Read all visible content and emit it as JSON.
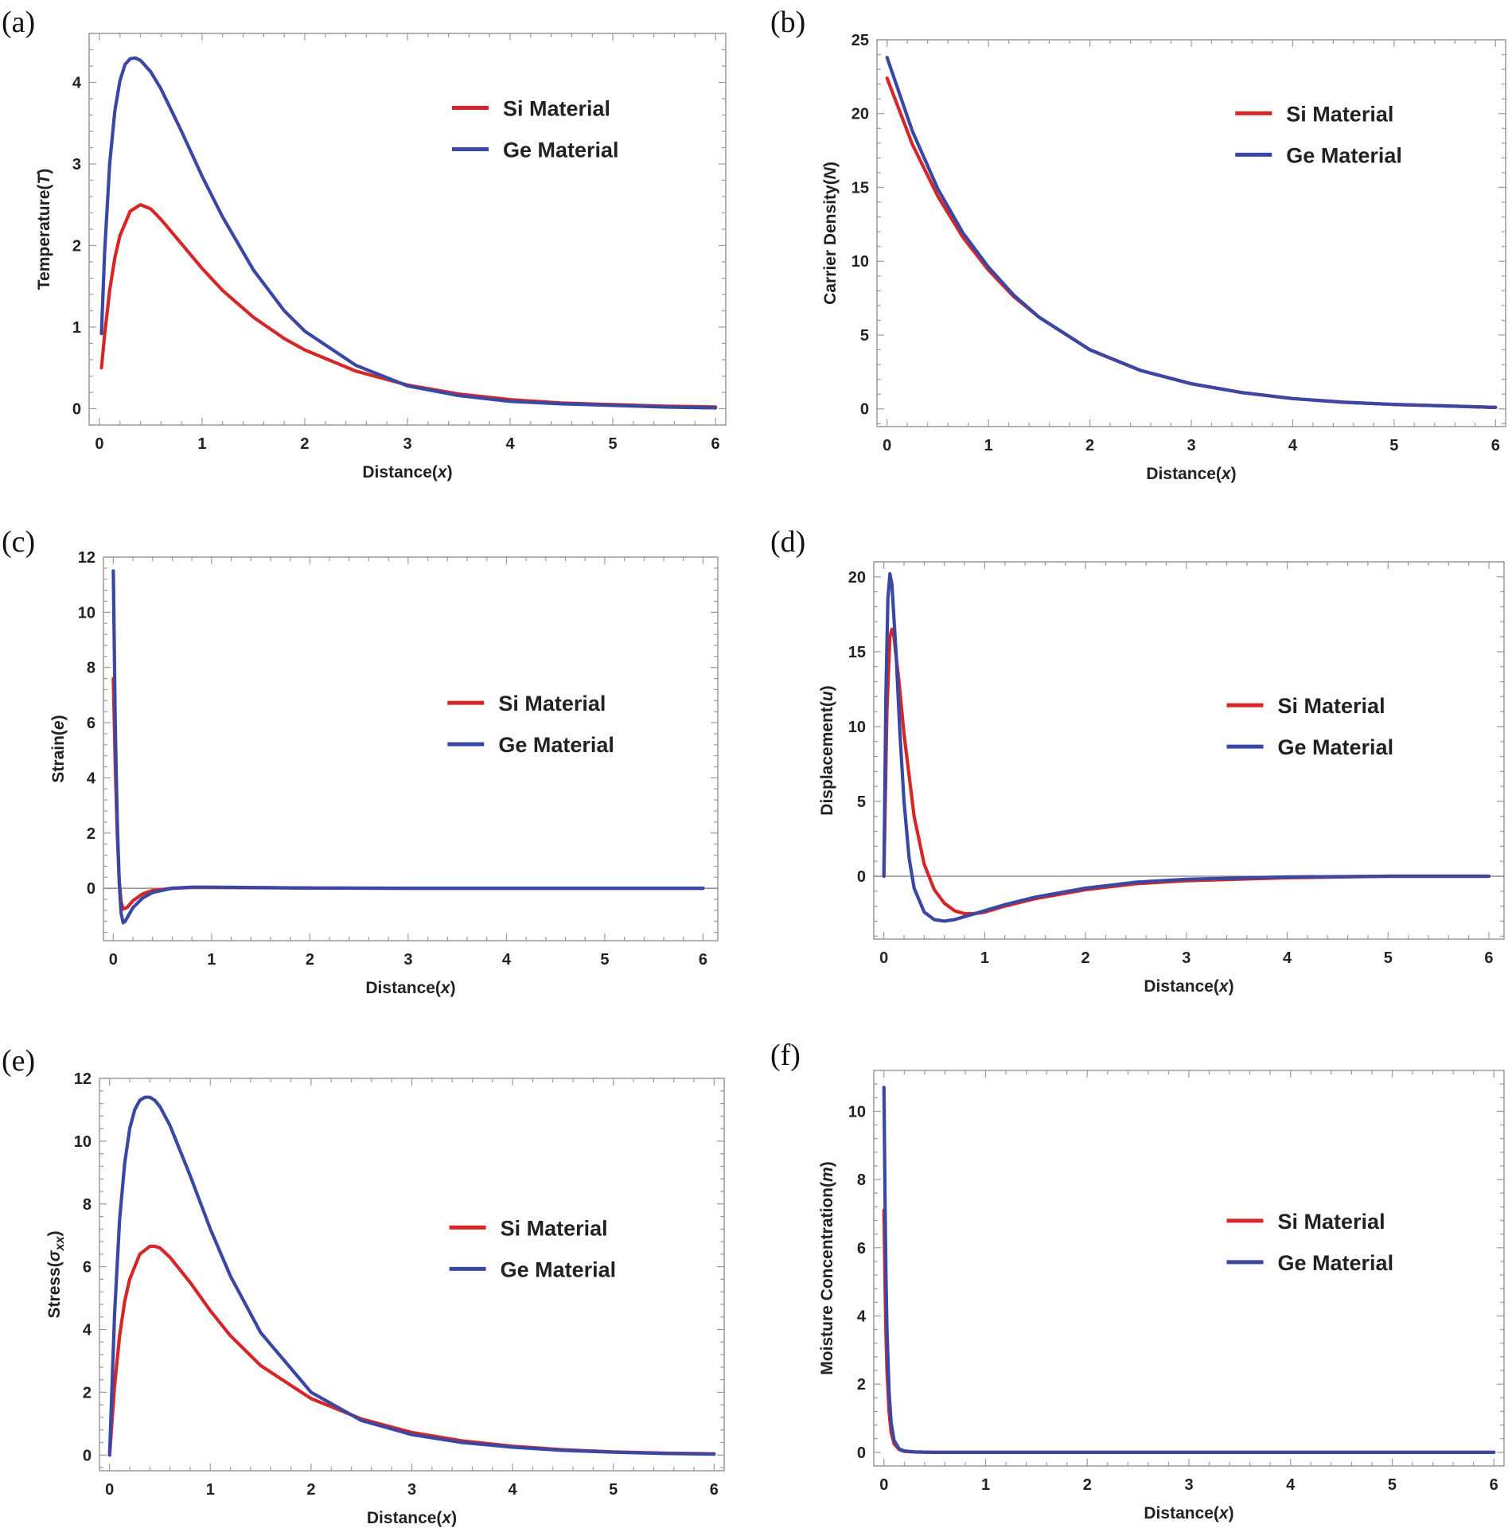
{
  "colors": {
    "si": "#d62728",
    "ge": "#3a48a3"
  },
  "chart_data": [
    {
      "type": "line",
      "panel_label": "(a)",
      "xlabel": "Distance(x)",
      "xlabel_main": "Distance(",
      "xlabel_var": "x",
      "xlabel_end": ")",
      "ylabel": "Temperature(T)",
      "ylabel_main": "Temperature(",
      "ylabel_var": "T",
      "ylabel_end": ")",
      "xlim": [
        -0.1,
        6.1
      ],
      "ylim": [
        -0.2,
        4.6
      ],
      "xticks": [
        0,
        1,
        2,
        3,
        4,
        5,
        6
      ],
      "yticks": [
        0,
        1,
        2,
        3,
        4
      ],
      "zero_line": false,
      "legend": [
        "Si Material",
        "Ge Material"
      ],
      "legend_position": "upper-right",
      "series": [
        {
          "name": "Si Material",
          "x": [
            0.02,
            0.05,
            0.1,
            0.15,
            0.2,
            0.3,
            0.4,
            0.5,
            0.6,
            0.8,
            1.0,
            1.2,
            1.5,
            1.8,
            2.0,
            2.5,
            3.0,
            3.5,
            4.0,
            4.5,
            5.0,
            5.5,
            6.0
          ],
          "y": [
            0.5,
            0.9,
            1.45,
            1.85,
            2.12,
            2.42,
            2.5,
            2.45,
            2.32,
            2.02,
            1.72,
            1.45,
            1.12,
            0.86,
            0.72,
            0.46,
            0.29,
            0.18,
            0.11,
            0.07,
            0.05,
            0.03,
            0.02
          ]
        },
        {
          "name": "Ge Material",
          "x": [
            0.02,
            0.05,
            0.1,
            0.15,
            0.2,
            0.25,
            0.3,
            0.35,
            0.4,
            0.5,
            0.6,
            0.8,
            1.0,
            1.2,
            1.5,
            1.8,
            2.0,
            2.5,
            3.0,
            3.5,
            4.0,
            4.5,
            5.0,
            5.5,
            6.0
          ],
          "y": [
            0.92,
            1.9,
            3.0,
            3.65,
            4.02,
            4.22,
            4.29,
            4.3,
            4.27,
            4.13,
            3.92,
            3.4,
            2.85,
            2.35,
            1.7,
            1.2,
            0.95,
            0.53,
            0.28,
            0.16,
            0.09,
            0.06,
            0.04,
            0.02,
            0.01
          ]
        }
      ]
    },
    {
      "type": "line",
      "panel_label": "(b)",
      "xlabel": "Distance(x)",
      "xlabel_main": "Distance(",
      "xlabel_var": "x",
      "xlabel_end": ")",
      "ylabel": "Carrier Density(N)",
      "ylabel_main": "Carrier Density(",
      "ylabel_var": "N",
      "ylabel_end": ")",
      "xlim": [
        -0.1,
        6.1
      ],
      "ylim": [
        -1.2,
        25.0
      ],
      "xticks": [
        0,
        1,
        2,
        3,
        4,
        5,
        6
      ],
      "yticks": [
        0,
        5,
        10,
        15,
        20,
        25
      ],
      "zero_line": false,
      "legend": [
        "Si Material",
        "Ge Material"
      ],
      "legend_position": "upper-right",
      "series": [
        {
          "name": "Si Material",
          "x": [
            0,
            0.25,
            0.5,
            0.75,
            1.0,
            1.25,
            1.5,
            2.0,
            2.5,
            3.0,
            3.5,
            4.0,
            4.5,
            5.0,
            5.5,
            6.0
          ],
          "y": [
            22.4,
            17.9,
            14.4,
            11.6,
            9.4,
            7.6,
            6.2,
            4.0,
            2.6,
            1.7,
            1.1,
            0.7,
            0.45,
            0.3,
            0.2,
            0.1
          ]
        },
        {
          "name": "Ge Material",
          "x": [
            0,
            0.25,
            0.5,
            0.75,
            1.0,
            1.25,
            1.5,
            2.0,
            2.5,
            3.0,
            3.5,
            4.0,
            4.5,
            5.0,
            5.5,
            6.0
          ],
          "y": [
            23.8,
            18.8,
            14.9,
            11.9,
            9.6,
            7.7,
            6.2,
            4.0,
            2.6,
            1.7,
            1.1,
            0.7,
            0.45,
            0.3,
            0.2,
            0.1
          ]
        }
      ]
    },
    {
      "type": "line",
      "panel_label": "(c)",
      "xlabel": "Distance(x)",
      "xlabel_main": "Distance(",
      "xlabel_var": "x",
      "xlabel_end": ")",
      "ylabel": "Strain(e)",
      "ylabel_main": "Strain(",
      "ylabel_var": "e",
      "ylabel_end": ")",
      "xlim": [
        -0.1,
        6.15
      ],
      "ylim": [
        -1.9,
        12.0
      ],
      "xticks": [
        0,
        1,
        2,
        3,
        4,
        5,
        6
      ],
      "yticks": [
        0,
        2,
        4,
        6,
        8,
        10,
        12
      ],
      "zero_line": true,
      "legend": [
        "Si Material",
        "Ge Material"
      ],
      "legend_position": "right",
      "series": [
        {
          "name": "Si Material",
          "x": [
            0,
            0.02,
            0.04,
            0.06,
            0.08,
            0.1,
            0.14,
            0.2,
            0.3,
            0.4,
            0.6,
            0.8,
            1.0,
            2.0,
            3.0,
            4.0,
            5.0,
            6.0
          ],
          "y": [
            7.6,
            4.5,
            2.0,
            0.3,
            -0.5,
            -0.75,
            -0.7,
            -0.45,
            -0.2,
            -0.08,
            0.0,
            0.03,
            0.03,
            0.01,
            0.0,
            0.0,
            0.0,
            0.0
          ]
        },
        {
          "name": "Ge Material",
          "x": [
            0,
            0.02,
            0.04,
            0.06,
            0.08,
            0.1,
            0.12,
            0.16,
            0.2,
            0.3,
            0.4,
            0.6,
            0.8,
            1.0,
            2.0,
            3.0,
            4.0,
            5.0,
            6.0
          ],
          "y": [
            11.5,
            6.0,
            2.5,
            0.2,
            -0.9,
            -1.25,
            -1.2,
            -0.95,
            -0.7,
            -0.35,
            -0.15,
            0.0,
            0.04,
            0.04,
            0.01,
            0.0,
            0.0,
            0.0,
            0.0
          ]
        }
      ]
    },
    {
      "type": "line",
      "panel_label": "(d)",
      "xlabel": "Distance(x)",
      "xlabel_main": "Distance(",
      "xlabel_var": "x",
      "xlabel_end": ")",
      "ylabel": "Displacement(u)",
      "ylabel_main": "Displacement(",
      "ylabel_var": "u",
      "ylabel_end": ")",
      "xlim": [
        -0.1,
        6.15
      ],
      "ylim": [
        -4.2,
        21.0
      ],
      "xticks": [
        0,
        1,
        2,
        3,
        4,
        5,
        6
      ],
      "yticks": [
        0,
        5,
        10,
        15,
        20
      ],
      "zero_line": true,
      "legend": [
        "Si Material",
        "Ge Material"
      ],
      "legend_position": "right",
      "series": [
        {
          "name": "Si Material",
          "x": [
            0.0,
            0.03,
            0.06,
            0.08,
            0.1,
            0.15,
            0.2,
            0.3,
            0.4,
            0.5,
            0.6,
            0.7,
            0.8,
            0.9,
            1.0,
            1.2,
            1.5,
            2.0,
            2.5,
            3.0,
            4.0,
            5.0,
            6.0
          ],
          "y": [
            0.0,
            11.0,
            16.0,
            16.5,
            16.0,
            13.0,
            9.5,
            4.0,
            0.8,
            -0.9,
            -1.8,
            -2.3,
            -2.5,
            -2.5,
            -2.4,
            -2.0,
            -1.5,
            -0.9,
            -0.5,
            -0.3,
            -0.1,
            0.0,
            0.0
          ]
        },
        {
          "name": "Ge Material",
          "x": [
            0.0,
            0.02,
            0.04,
            0.06,
            0.08,
            0.12,
            0.16,
            0.2,
            0.25,
            0.3,
            0.4,
            0.5,
            0.6,
            0.7,
            0.8,
            1.0,
            1.2,
            1.5,
            2.0,
            2.5,
            3.0,
            4.0,
            5.0,
            6.0
          ],
          "y": [
            0.0,
            12.0,
            18.5,
            20.2,
            19.5,
            15.0,
            9.5,
            5.0,
            1.2,
            -0.8,
            -2.4,
            -2.9,
            -3.0,
            -2.9,
            -2.7,
            -2.3,
            -1.9,
            -1.4,
            -0.8,
            -0.4,
            -0.2,
            -0.05,
            0.0,
            0.0
          ]
        }
      ]
    },
    {
      "type": "line",
      "panel_label": "(e)",
      "xlabel": "Distance(x)",
      "xlabel_main": "Distance(",
      "xlabel_var": "x",
      "xlabel_end": ")",
      "ylabel": "Stress(σxx)",
      "ylabel_main": "Stress(",
      "ylabel_var": "σ",
      "ylabel_sub": "xx",
      "ylabel_end": ")",
      "xlim": [
        -0.1,
        6.1
      ],
      "ylim": [
        -0.5,
        12.0
      ],
      "xticks": [
        0,
        1,
        2,
        3,
        4,
        5,
        6
      ],
      "yticks": [
        0,
        2,
        4,
        6,
        8,
        10,
        12
      ],
      "zero_line": false,
      "legend": [
        "Si Material",
        "Ge Material"
      ],
      "legend_position": "right",
      "series": [
        {
          "name": "Si Material",
          "x": [
            0.0,
            0.05,
            0.1,
            0.15,
            0.2,
            0.3,
            0.4,
            0.45,
            0.5,
            0.6,
            0.8,
            1.0,
            1.2,
            1.5,
            2.0,
            2.5,
            3.0,
            3.5,
            4.0,
            4.5,
            5.0,
            5.5,
            6.0
          ],
          "y": [
            0.0,
            2.2,
            3.8,
            4.9,
            5.6,
            6.4,
            6.65,
            6.65,
            6.6,
            6.3,
            5.5,
            4.6,
            3.8,
            2.85,
            1.8,
            1.15,
            0.72,
            0.45,
            0.28,
            0.17,
            0.1,
            0.06,
            0.04
          ]
        },
        {
          "name": "Ge Material",
          "x": [
            0.0,
            0.05,
            0.1,
            0.15,
            0.2,
            0.25,
            0.3,
            0.35,
            0.4,
            0.45,
            0.5,
            0.6,
            0.8,
            1.0,
            1.2,
            1.5,
            2.0,
            2.5,
            3.0,
            3.5,
            4.0,
            4.5,
            5.0,
            5.5,
            6.0
          ],
          "y": [
            0.0,
            4.5,
            7.5,
            9.3,
            10.4,
            11.0,
            11.3,
            11.4,
            11.4,
            11.3,
            11.1,
            10.5,
            8.9,
            7.2,
            5.7,
            3.9,
            2.0,
            1.1,
            0.65,
            0.4,
            0.25,
            0.15,
            0.09,
            0.05,
            0.03
          ]
        }
      ]
    },
    {
      "type": "line",
      "panel_label": "(f)",
      "xlabel": "Distance(x)",
      "xlabel_main": "Distance(",
      "xlabel_var": "x",
      "xlabel_end": ")",
      "ylabel": "Moisture Concentration(m)",
      "ylabel_main": "Moisture Concentration(",
      "ylabel_var": "m",
      "ylabel_end": ")",
      "xlim": [
        -0.1,
        6.1
      ],
      "ylim": [
        -0.4,
        11.2
      ],
      "xticks": [
        0,
        1,
        2,
        3,
        4,
        5,
        6
      ],
      "yticks": [
        0,
        2,
        4,
        6,
        8,
        10
      ],
      "zero_line": false,
      "legend": [
        "Si Material",
        "Ge Material"
      ],
      "legend_position": "right",
      "series": [
        {
          "name": "Si Material",
          "x": [
            0.0,
            0.01,
            0.02,
            0.03,
            0.05,
            0.07,
            0.1,
            0.15,
            0.2,
            0.3,
            0.5,
            1.0,
            2.0,
            3.0,
            4.0,
            5.0,
            6.0
          ],
          "y": [
            7.1,
            5.0,
            3.5,
            2.4,
            1.2,
            0.6,
            0.25,
            0.08,
            0.03,
            0.01,
            0.0,
            0.0,
            0.0,
            0.0,
            0.0,
            0.0,
            0.0
          ]
        },
        {
          "name": "Ge Material",
          "x": [
            0.0,
            0.01,
            0.02,
            0.03,
            0.05,
            0.07,
            0.1,
            0.15,
            0.2,
            0.3,
            0.5,
            1.0,
            2.0,
            3.0,
            4.0,
            5.0,
            6.0
          ],
          "y": [
            10.7,
            7.5,
            5.2,
            3.6,
            1.8,
            0.9,
            0.35,
            0.1,
            0.04,
            0.01,
            0.0,
            0.0,
            0.0,
            0.0,
            0.0,
            0.0,
            0.0
          ]
        }
      ]
    }
  ]
}
